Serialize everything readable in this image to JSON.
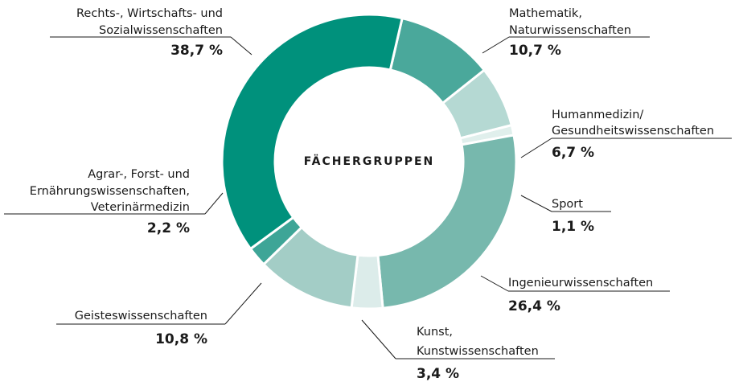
{
  "chart_data": {
    "type": "donut",
    "center_label": "FÄCHERGRUPPEN",
    "categories": [
      [
        "Mathematik,",
        "Naturwissenschaften"
      ],
      [
        "Humanmedizin/",
        "Gesundheitswissenschaften"
      ],
      [
        "Sport"
      ],
      [
        "Ingenieurwissenschaften"
      ],
      [
        "Kunst,",
        "Kunstwissenschaften"
      ],
      [
        "Geisteswissenschaften"
      ],
      [
        "Agrar-, Forst- und",
        "Ernährungswissenschaften,",
        "Veterinärmedizin"
      ],
      [
        "Rechts-, Wirtschafts- und",
        "Sozialwissenschaften"
      ]
    ],
    "values": [
      10.7,
      6.7,
      1.1,
      26.4,
      3.4,
      10.8,
      2.2,
      38.7
    ],
    "value_labels": [
      "10,7 %",
      "6,7 %",
      "1,1 %",
      "26,4 %",
      "3,4 %",
      "10,8 %",
      "2,2 %",
      "38,7 %"
    ],
    "colors": [
      "#4aa89b",
      "#b5d9d3",
      "#e0efec",
      "#77b8ad",
      "#dcecea",
      "#a3cdc6",
      "#3ea597",
      "#00917c"
    ]
  }
}
